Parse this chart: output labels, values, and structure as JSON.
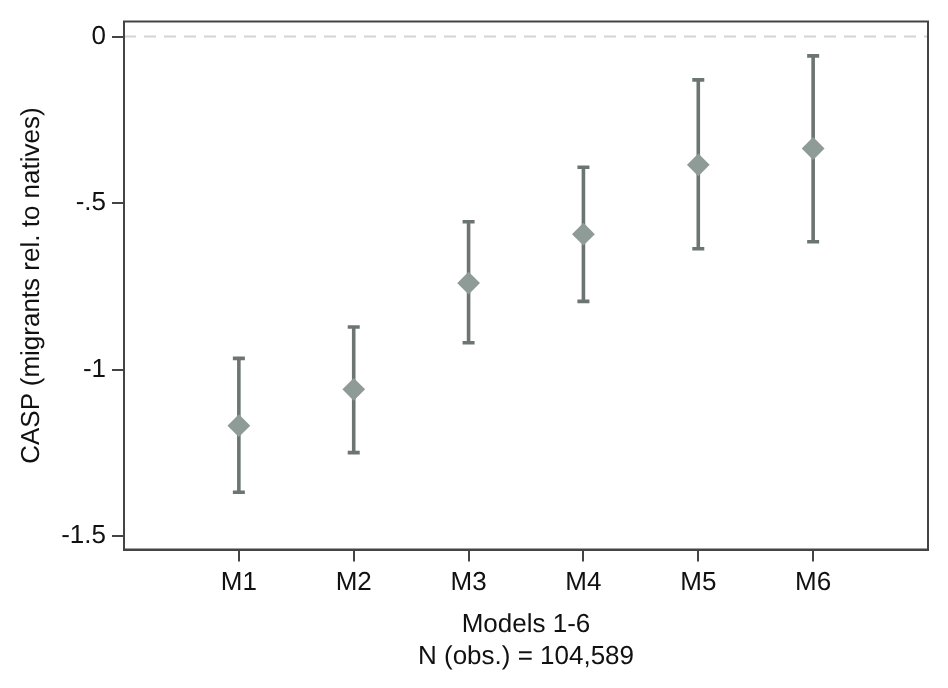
{
  "chart_data": {
    "type": "scatter",
    "xlabel": "Models 1-6",
    "ylabel": "CASP (migrants rel. to natives)",
    "annotations": [
      "N (obs.) = 104,589"
    ],
    "categories": [
      "M1",
      "M2",
      "M3",
      "M4",
      "M5",
      "M6"
    ],
    "series": [
      {
        "color": "#8f9b97",
        "values": [
          -1.168,
          -1.059,
          -0.74,
          -0.593,
          -0.385,
          -0.336
        ],
        "errors": [
          [
            -1.368,
            -0.966
          ],
          [
            -1.249,
            -0.872
          ],
          [
            -0.919,
            -0.556
          ],
          [
            -0.795,
            -0.392
          ],
          [
            -0.637,
            -0.13
          ],
          [
            -0.616,
            -0.058
          ]
        ]
      }
    ],
    "marker": "diamond",
    "ylim": [
      -1.54,
      0.045
    ],
    "yticks": [
      0,
      {
        "value": -0.5,
        "label": "-.5"
      },
      -1,
      -1.5
    ],
    "ref_lines": [
      {
        "axis": "y",
        "value": 0,
        "color": "#d4d4d4",
        "line_style": "dashed"
      }
    ],
    "grid": false,
    "legend": false
  }
}
